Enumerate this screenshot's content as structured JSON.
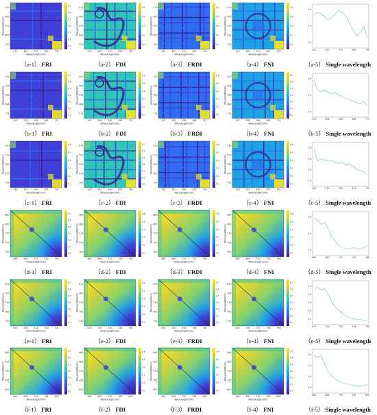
{
  "figure": {
    "axis_label_x": "Wavelength(nm)",
    "axis_label_y": "Wavelength(nm)",
    "rows": [
      {
        "id": "a",
        "heat_type": "grid",
        "x_ticks": [
          "410",
          "490",
          "570",
          "650",
          "730"
        ],
        "y_ticks": [
          "410",
          "490",
          "570",
          "650",
          "730"
        ],
        "line_ticks": [
          "410",
          "490",
          "570",
          "650",
          "730"
        ],
        "line_yticks": [
          "0.2",
          "0.3",
          "0.4"
        ],
        "colorbar_ticks": [
          [
            "0.7",
            "0.6",
            "0.5",
            "0.4",
            "0.3",
            "0.2",
            "0.1"
          ],
          [
            "0.5",
            "0.4",
            "0.3",
            "0.2",
            "0.1"
          ],
          [
            "0.5",
            "0.4",
            "0.3",
            "0.2",
            "0.1"
          ],
          [
            "0.5",
            "0.4",
            "0.3",
            "0.2",
            "0.1"
          ]
        ],
        "captions": [
          {
            "prefix": "（a-1）",
            "name": "FRI"
          },
          {
            "prefix": "（a-2）",
            "name": "FDI"
          },
          {
            "prefix": "（a-3）",
            "name": "FRDI"
          },
          {
            "prefix": "（a-4）",
            "name": "FNI"
          },
          {
            "prefix": "（a-5）",
            "name": "Single wavelength"
          }
        ],
        "spectrum": [
          0.35,
          0.38,
          0.36,
          0.33,
          0.3,
          0.32,
          0.36,
          0.4,
          0.38,
          0.34,
          0.26,
          0.18,
          0.12,
          0.16,
          0.22,
          0.1
        ]
      },
      {
        "id": "b",
        "heat_type": "grid",
        "x_ticks": [
          "420",
          "508",
          "596",
          "684",
          "772"
        ],
        "y_ticks": [
          "420",
          "508",
          "596",
          "684",
          "772"
        ],
        "line_ticks": [
          "420",
          "508",
          "596",
          "684",
          "772"
        ],
        "line_yticks": [
          "0.2",
          "0.3",
          "0.4"
        ],
        "colorbar_ticks": [
          [
            "0.7",
            "0.6",
            "0.5",
            "0.4",
            "0.3",
            "0.2",
            "0.1"
          ],
          [
            "0.6",
            "0.5",
            "0.4",
            "0.3",
            "0.2",
            "0.1"
          ],
          [
            "0.6",
            "0.5",
            "0.4",
            "0.3",
            "0.2",
            "0.1"
          ],
          [
            "0.7",
            "0.6",
            "0.5",
            "0.4",
            "0.3",
            "0.2",
            "0.1"
          ]
        ],
        "captions": [
          {
            "prefix": "（b-1）",
            "name": "FRI"
          },
          {
            "prefix": "（b-2）",
            "name": "FDI"
          },
          {
            "prefix": "（b-3）",
            "name": "FRDI"
          },
          {
            "prefix": "（b-4）",
            "name": "FNI"
          },
          {
            "prefix": "（b-5）",
            "name": "Single wavelength"
          }
        ],
        "spectrum": [
          0.42,
          0.3,
          0.28,
          0.3,
          0.27,
          0.25,
          0.27,
          0.24,
          0.22,
          0.2,
          0.19,
          0.17,
          0.15,
          0.14,
          0.16,
          0.12
        ]
      },
      {
        "id": "c",
        "heat_type": "grid",
        "x_ticks": [
          "430",
          "510",
          "590",
          "670",
          "750"
        ],
        "y_ticks": [
          "430",
          "510",
          "590",
          "670",
          "750"
        ],
        "line_ticks": [
          "430",
          "510",
          "590",
          "670",
          "750"
        ],
        "line_yticks": [
          "0.2",
          "0.3",
          "0.4",
          "0.5"
        ],
        "colorbar_ticks": [
          [
            "0.6",
            "0.5",
            "0.4",
            "0.3",
            "0.2",
            "0.1"
          ],
          [
            "0.7",
            "0.6",
            "0.5",
            "0.4",
            "0.3",
            "0.2",
            "0.1"
          ],
          [
            "0.6",
            "0.5",
            "0.4",
            "0.3",
            "0.2",
            "0.1"
          ],
          [
            "0.6",
            "0.5",
            "0.4",
            "0.3",
            "0.2",
            "0.1"
          ]
        ],
        "captions": [
          {
            "prefix": "（c-1）",
            "name": "FRI"
          },
          {
            "prefix": "（c-2）",
            "name": "FDI"
          },
          {
            "prefix": "（c-3）",
            "name": "FRDI"
          },
          {
            "prefix": "（c-4）",
            "name": "FNI"
          },
          {
            "prefix": "（c-5）",
            "name": "Single wavelength"
          }
        ],
        "spectrum": [
          0.55,
          0.36,
          0.4,
          0.38,
          0.36,
          0.37,
          0.34,
          0.33,
          0.34,
          0.3,
          0.32,
          0.28,
          0.24,
          0.22,
          0.2,
          0.16
        ]
      },
      {
        "id": "d",
        "heat_type": "smooth",
        "x_ticks": [
          "660",
          "690",
          "720",
          "750",
          "780"
        ],
        "y_ticks": [
          "660",
          "690",
          "720",
          "750",
          "780"
        ],
        "line_ticks": [
          "660",
          "690",
          "720",
          "750",
          "780"
        ],
        "line_yticks": [
          "0.1",
          "0.2",
          "0.3"
        ],
        "colorbar_ticks": [
          [
            "0.7",
            "0.6",
            "0.5",
            "0.4",
            "0.3",
            "0.2",
            "0.1"
          ],
          [
            "0.6",
            "0.5",
            "0.4",
            "0.3",
            "0.2",
            "0.1"
          ],
          [
            "0.6",
            "0.5",
            "0.4",
            "0.3",
            "0.2",
            "0.1"
          ],
          [
            "0.6",
            "0.5",
            "0.4",
            "0.3",
            "0.2",
            "0.1"
          ]
        ],
        "captions": [
          {
            "prefix": "（d-1）",
            "name": "FRI"
          },
          {
            "prefix": "（d-2）",
            "name": "FDI"
          },
          {
            "prefix": "（d-3）",
            "name": "FRDI"
          },
          {
            "prefix": "（d-4）",
            "name": "FNI"
          },
          {
            "prefix": "（d-5）",
            "name": "Single wavelength"
          }
        ],
        "spectrum": [
          0.34,
          0.32,
          0.28,
          0.3,
          0.24,
          0.16,
          0.12,
          0.08,
          0.06,
          0.05,
          0.05,
          0.06,
          0.05,
          0.05,
          0.06,
          0.08
        ]
      },
      {
        "id": "e",
        "heat_type": "smooth",
        "x_ticks": [
          "670",
          "700",
          "730",
          "760",
          "790"
        ],
        "y_ticks": [
          "670",
          "700",
          "730",
          "760",
          "790"
        ],
        "line_ticks": [
          "670",
          "700",
          "730",
          "760",
          "790"
        ],
        "line_yticks": [
          "0.1",
          "0.2",
          "0.3",
          "0.4",
          "0.5"
        ],
        "colorbar_ticks": [
          [
            "0.7",
            "0.6",
            "0.5",
            "0.4",
            "0.3",
            "0.2",
            "0.1"
          ],
          [
            "0.6",
            "0.5",
            "0.4",
            "0.3",
            "0.2",
            "0.1"
          ],
          [
            "0.7",
            "0.6",
            "0.5",
            "0.4",
            "0.3",
            "0.2",
            "0.1"
          ],
          [
            "0.7",
            "0.6",
            "0.5",
            "0.4",
            "0.3",
            "0.2",
            "0.1"
          ]
        ],
        "captions": [
          {
            "prefix": "（e-1）",
            "name": "FRI"
          },
          {
            "prefix": "（e-2）",
            "name": "FDI"
          },
          {
            "prefix": "（e-3）",
            "name": "FRDI"
          },
          {
            "prefix": "（e-4）",
            "name": "FNI"
          },
          {
            "prefix": "（e-5）",
            "name": "Single wavelength"
          }
        ],
        "spectrum": [
          0.45,
          0.5,
          0.46,
          0.48,
          0.4,
          0.3,
          0.22,
          0.18,
          0.14,
          0.1,
          0.08,
          0.06,
          0.05,
          0.05,
          0.04,
          0.04
        ]
      },
      {
        "id": "f",
        "heat_type": "smooth",
        "x_ticks": [
          "660",
          "695",
          "730",
          "765",
          "800"
        ],
        "y_ticks": [
          "660",
          "695",
          "730",
          "765",
          "800"
        ],
        "line_ticks": [
          "660",
          "695",
          "730",
          "765",
          "800"
        ],
        "line_yticks": [
          "0.1",
          "0.2",
          "0.3",
          "0.4"
        ],
        "colorbar_ticks": [
          [
            "0.7",
            "0.6",
            "0.5",
            "0.4",
            "0.3",
            "0.2",
            "0.1"
          ],
          [
            "0.6",
            "0.5",
            "0.4",
            "0.3",
            "0.2",
            "0.1"
          ],
          [
            "0.6",
            "0.5",
            "0.4",
            "0.3",
            "0.2",
            "0.1"
          ],
          [
            "0.7",
            "0.6",
            "0.5",
            "0.4",
            "0.3",
            "0.2",
            "0.1"
          ]
        ],
        "captions": [
          {
            "prefix": "（f-1）",
            "name": "FRI"
          },
          {
            "prefix": "（f-2）",
            "name": "FDI"
          },
          {
            "prefix": "（f-3）",
            "name": "FRDI"
          },
          {
            "prefix": "（f-4）",
            "name": "FNI"
          },
          {
            "prefix": "（f-5）",
            "name": "Single wavelength"
          }
        ],
        "spectrum": [
          0.4,
          0.38,
          0.4,
          0.3,
          0.22,
          0.18,
          0.14,
          0.12,
          0.1,
          0.09,
          0.08,
          0.07,
          0.06,
          0.06,
          0.07,
          0.08
        ]
      }
    ]
  },
  "colors": {
    "viridis": [
      "#3b1d8f",
      "#3f3fd6",
      "#2f6ef0",
      "#1fa2e4",
      "#2fc6b8",
      "#86d26c",
      "#d8d238",
      "#f6e71f"
    ],
    "spectrum_line": "#8ec9dd",
    "axis": "#444444"
  }
}
